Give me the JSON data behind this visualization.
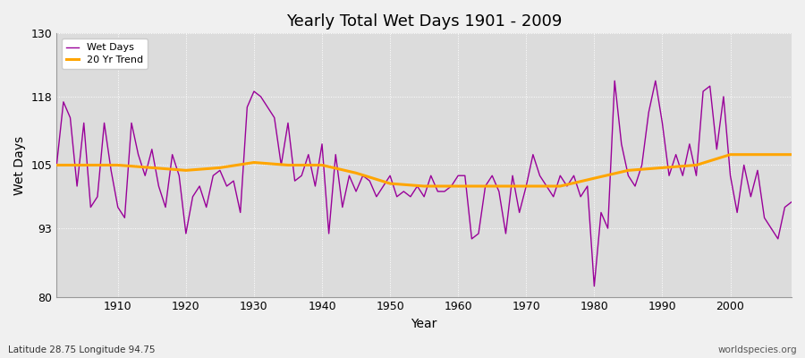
{
  "title": "Yearly Total Wet Days 1901 - 2009",
  "xlabel": "Year",
  "ylabel": "Wet Days",
  "subtitle_left": "Latitude 28.75 Longitude 94.75",
  "subtitle_right": "worldspecies.org",
  "line_color": "#990099",
  "trend_color": "#FFA500",
  "plot_bg_color": "#dcdcdc",
  "fig_bg_color": "#f0f0f0",
  "ylim": [
    80,
    130
  ],
  "yticks": [
    80,
    93,
    105,
    118,
    130
  ],
  "xticks": [
    1910,
    1920,
    1930,
    1940,
    1950,
    1960,
    1970,
    1980,
    1990,
    2000
  ],
  "wet_days": [
    105,
    117,
    114,
    101,
    113,
    97,
    99,
    113,
    104,
    97,
    95,
    113,
    107,
    103,
    108,
    101,
    97,
    107,
    103,
    92,
    99,
    101,
    97,
    103,
    104,
    101,
    102,
    96,
    116,
    119,
    118,
    116,
    114,
    105,
    113,
    102,
    103,
    107,
    101,
    109,
    92,
    107,
    97,
    103,
    100,
    103,
    102,
    99,
    101,
    103,
    99,
    100,
    99,
    101,
    99,
    103,
    100,
    100,
    101,
    103,
    103,
    91,
    92,
    101,
    103,
    100,
    92,
    103,
    96,
    101,
    107,
    103,
    101,
    99,
    103,
    101,
    103,
    99,
    101,
    82,
    96,
    93,
    121,
    109,
    103,
    101,
    105,
    115,
    121,
    113,
    103,
    107,
    103,
    109,
    103,
    119,
    120,
    108,
    118,
    103,
    96,
    105,
    99,
    104,
    95,
    93,
    91,
    97,
    98
  ],
  "trend_years": [
    1901,
    1905,
    1910,
    1915,
    1920,
    1925,
    1930,
    1935,
    1940,
    1945,
    1950,
    1955,
    1960,
    1965,
    1970,
    1975,
    1980,
    1985,
    1990,
    1995,
    2000,
    2005,
    2009
  ],
  "trend_values": [
    105.0,
    105.0,
    105.0,
    104.5,
    104.0,
    104.5,
    105.5,
    105.0,
    105.0,
    103.5,
    101.5,
    101.0,
    101.0,
    101.0,
    101.0,
    101.0,
    102.5,
    104.0,
    104.5,
    105.0,
    107.0,
    107.0,
    107.0
  ]
}
